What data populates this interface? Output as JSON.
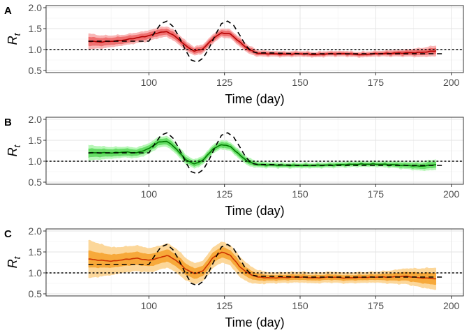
{
  "chart_data": [
    {
      "type": "line",
      "panel_label": "A",
      "xlabel": "Time (day)",
      "ylabel": "R",
      "ylabel_sub": "t",
      "xlim": [
        66,
        204
      ],
      "ylim": [
        0.45,
        2.05
      ],
      "xticks": [
        100,
        125,
        150,
        175,
        200
      ],
      "yticks": [
        0.5,
        1.0,
        1.5,
        2.0
      ],
      "ytick_labels": [
        "0.5",
        "1.0",
        "1.5",
        "2.0"
      ],
      "grid": true,
      "reference_line": 1.0,
      "colors": {
        "band_outer": "#f9b6b6",
        "band_inner": "#ef7070",
        "estimate": "#b40000"
      },
      "truth": {
        "x": [
          80,
          85,
          90,
          95,
          100,
          102,
          104,
          106,
          108,
          110,
          112,
          114,
          116,
          118,
          120,
          122,
          124,
          126,
          128,
          130,
          132,
          134,
          136,
          140,
          150,
          160,
          170,
          180,
          190,
          197
        ],
        "values": [
          1.2,
          1.2,
          1.2,
          1.2,
          1.2,
          1.42,
          1.62,
          1.68,
          1.55,
          1.3,
          1.0,
          0.75,
          0.7,
          0.8,
          1.05,
          1.35,
          1.62,
          1.68,
          1.58,
          1.35,
          1.1,
          0.95,
          0.92,
          0.92,
          0.9,
          0.9,
          0.9,
          0.9,
          0.9,
          0.9
        ]
      },
      "series": [
        {
          "x": [
            80,
            84,
            88,
            92,
            96,
            100,
            103,
            106,
            109,
            112,
            115,
            118,
            121,
            124,
            127,
            130,
            133,
            136,
            140,
            145,
            150,
            155,
            160,
            165,
            170,
            175,
            180,
            185,
            190,
            195
          ],
          "values": [
            1.2,
            1.18,
            1.2,
            1.23,
            1.28,
            1.33,
            1.4,
            1.43,
            1.3,
            1.1,
            0.96,
            1.02,
            1.25,
            1.4,
            1.37,
            1.18,
            1.0,
            0.91,
            0.9,
            0.89,
            0.9,
            0.88,
            0.9,
            0.9,
            0.88,
            0.9,
            0.91,
            0.92,
            0.93,
            0.97
          ],
          "inner_halfwidth": [
            0.1,
            0.09,
            0.08,
            0.08,
            0.07,
            0.07,
            0.07,
            0.07,
            0.07,
            0.06,
            0.06,
            0.06,
            0.06,
            0.06,
            0.06,
            0.06,
            0.05,
            0.04,
            0.03,
            0.03,
            0.03,
            0.03,
            0.03,
            0.03,
            0.03,
            0.03,
            0.04,
            0.05,
            0.06,
            0.07
          ],
          "outer_halfwidth": [
            0.18,
            0.15,
            0.13,
            0.12,
            0.12,
            0.12,
            0.12,
            0.12,
            0.12,
            0.11,
            0.1,
            0.1,
            0.1,
            0.1,
            0.1,
            0.1,
            0.09,
            0.07,
            0.06,
            0.06,
            0.06,
            0.06,
            0.06,
            0.06,
            0.06,
            0.06,
            0.07,
            0.08,
            0.1,
            0.12
          ]
        }
      ]
    },
    {
      "type": "line",
      "panel_label": "B",
      "xlabel": "Time (day)",
      "ylabel": "R",
      "ylabel_sub": "t",
      "xlim": [
        66,
        204
      ],
      "ylim": [
        0.45,
        2.05
      ],
      "xticks": [
        100,
        125,
        150,
        175,
        200
      ],
      "yticks": [
        0.5,
        1.0,
        1.5,
        2.0
      ],
      "ytick_labels": [
        "0.5",
        "1.0",
        "1.5",
        "2.0"
      ],
      "grid": true,
      "reference_line": 1.0,
      "colors": {
        "band_outer": "#b8f7b8",
        "band_inner": "#66dd66",
        "estimate": "#007a00"
      },
      "truth": {
        "x": [
          80,
          85,
          90,
          95,
          100,
          102,
          104,
          106,
          108,
          110,
          112,
          114,
          116,
          118,
          120,
          122,
          124,
          126,
          128,
          130,
          132,
          134,
          136,
          140,
          150,
          160,
          170,
          180,
          190,
          197
        ],
        "values": [
          1.2,
          1.2,
          1.2,
          1.2,
          1.2,
          1.42,
          1.62,
          1.68,
          1.55,
          1.3,
          1.0,
          0.75,
          0.7,
          0.8,
          1.05,
          1.35,
          1.62,
          1.68,
          1.58,
          1.35,
          1.1,
          0.95,
          0.92,
          0.92,
          0.9,
          0.9,
          0.9,
          0.9,
          0.9,
          0.9
        ]
      },
      "series": [
        {
          "x": [
            80,
            84,
            88,
            92,
            96,
            100,
            103,
            106,
            109,
            112,
            115,
            118,
            121,
            124,
            127,
            130,
            133,
            136,
            140,
            145,
            150,
            155,
            160,
            165,
            170,
            175,
            180,
            185,
            190,
            195
          ],
          "values": [
            1.2,
            1.2,
            1.2,
            1.22,
            1.2,
            1.3,
            1.45,
            1.48,
            1.3,
            1.05,
            0.93,
            1.03,
            1.28,
            1.4,
            1.35,
            1.15,
            0.98,
            0.92,
            0.91,
            0.9,
            0.9,
            0.9,
            0.91,
            0.92,
            0.93,
            0.93,
            0.92,
            0.9,
            0.88,
            0.92
          ],
          "inner_halfwidth": [
            0.1,
            0.09,
            0.08,
            0.08,
            0.07,
            0.07,
            0.07,
            0.07,
            0.07,
            0.06,
            0.06,
            0.06,
            0.06,
            0.06,
            0.06,
            0.06,
            0.05,
            0.04,
            0.03,
            0.03,
            0.03,
            0.03,
            0.03,
            0.03,
            0.03,
            0.03,
            0.04,
            0.05,
            0.06,
            0.07
          ],
          "outer_halfwidth": [
            0.18,
            0.15,
            0.13,
            0.12,
            0.12,
            0.12,
            0.12,
            0.12,
            0.12,
            0.11,
            0.1,
            0.1,
            0.1,
            0.1,
            0.1,
            0.1,
            0.09,
            0.07,
            0.06,
            0.06,
            0.06,
            0.06,
            0.06,
            0.06,
            0.06,
            0.06,
            0.07,
            0.08,
            0.1,
            0.12
          ]
        }
      ]
    },
    {
      "type": "line",
      "panel_label": "C",
      "xlabel": "Time (day)",
      "ylabel": "R",
      "ylabel_sub": "t",
      "xlim": [
        66,
        204
      ],
      "ylim": [
        0.45,
        2.05
      ],
      "xticks": [
        100,
        125,
        150,
        175,
        200
      ],
      "yticks": [
        0.5,
        1.0,
        1.5,
        2.0
      ],
      "ytick_labels": [
        "0.5",
        "1.0",
        "1.5",
        "2.0"
      ],
      "grid": true,
      "reference_line": 1.0,
      "colors": {
        "band_outer": "#fcd79a",
        "band_inner": "#f7a93a",
        "estimate": "#cc3300"
      },
      "truth": {
        "x": [
          80,
          85,
          90,
          95,
          100,
          102,
          104,
          106,
          108,
          110,
          112,
          114,
          116,
          118,
          120,
          122,
          124,
          126,
          128,
          130,
          132,
          134,
          136,
          140,
          150,
          160,
          170,
          180,
          190,
          197
        ],
        "values": [
          1.2,
          1.2,
          1.2,
          1.2,
          1.2,
          1.42,
          1.62,
          1.68,
          1.55,
          1.3,
          1.0,
          0.75,
          0.7,
          0.8,
          1.05,
          1.35,
          1.62,
          1.68,
          1.58,
          1.35,
          1.1,
          0.95,
          0.92,
          0.92,
          0.9,
          0.9,
          0.9,
          0.9,
          0.9,
          0.9
        ]
      },
      "series": [
        {
          "x": [
            80,
            84,
            88,
            92,
            96,
            100,
            103,
            106,
            109,
            112,
            115,
            118,
            121,
            124,
            127,
            130,
            133,
            136,
            140,
            145,
            150,
            155,
            160,
            165,
            170,
            175,
            180,
            185,
            190,
            195
          ],
          "values": [
            1.33,
            1.3,
            1.28,
            1.32,
            1.35,
            1.3,
            1.35,
            1.42,
            1.3,
            1.1,
            0.98,
            1.05,
            1.35,
            1.5,
            1.42,
            1.15,
            0.98,
            0.9,
            0.88,
            0.89,
            0.9,
            0.88,
            0.9,
            0.88,
            0.89,
            0.9,
            0.9,
            0.92,
            0.88,
            0.86
          ],
          "inner_halfwidth": [
            0.2,
            0.17,
            0.15,
            0.15,
            0.15,
            0.14,
            0.14,
            0.14,
            0.14,
            0.13,
            0.12,
            0.12,
            0.12,
            0.12,
            0.12,
            0.12,
            0.1,
            0.08,
            0.06,
            0.06,
            0.06,
            0.06,
            0.06,
            0.06,
            0.06,
            0.06,
            0.08,
            0.1,
            0.12,
            0.14
          ],
          "outer_halfwidth": [
            0.45,
            0.38,
            0.32,
            0.3,
            0.3,
            0.28,
            0.28,
            0.28,
            0.28,
            0.26,
            0.24,
            0.24,
            0.24,
            0.24,
            0.24,
            0.24,
            0.2,
            0.16,
            0.12,
            0.12,
            0.12,
            0.12,
            0.12,
            0.12,
            0.12,
            0.12,
            0.15,
            0.18,
            0.22,
            0.26
          ]
        }
      ]
    }
  ]
}
